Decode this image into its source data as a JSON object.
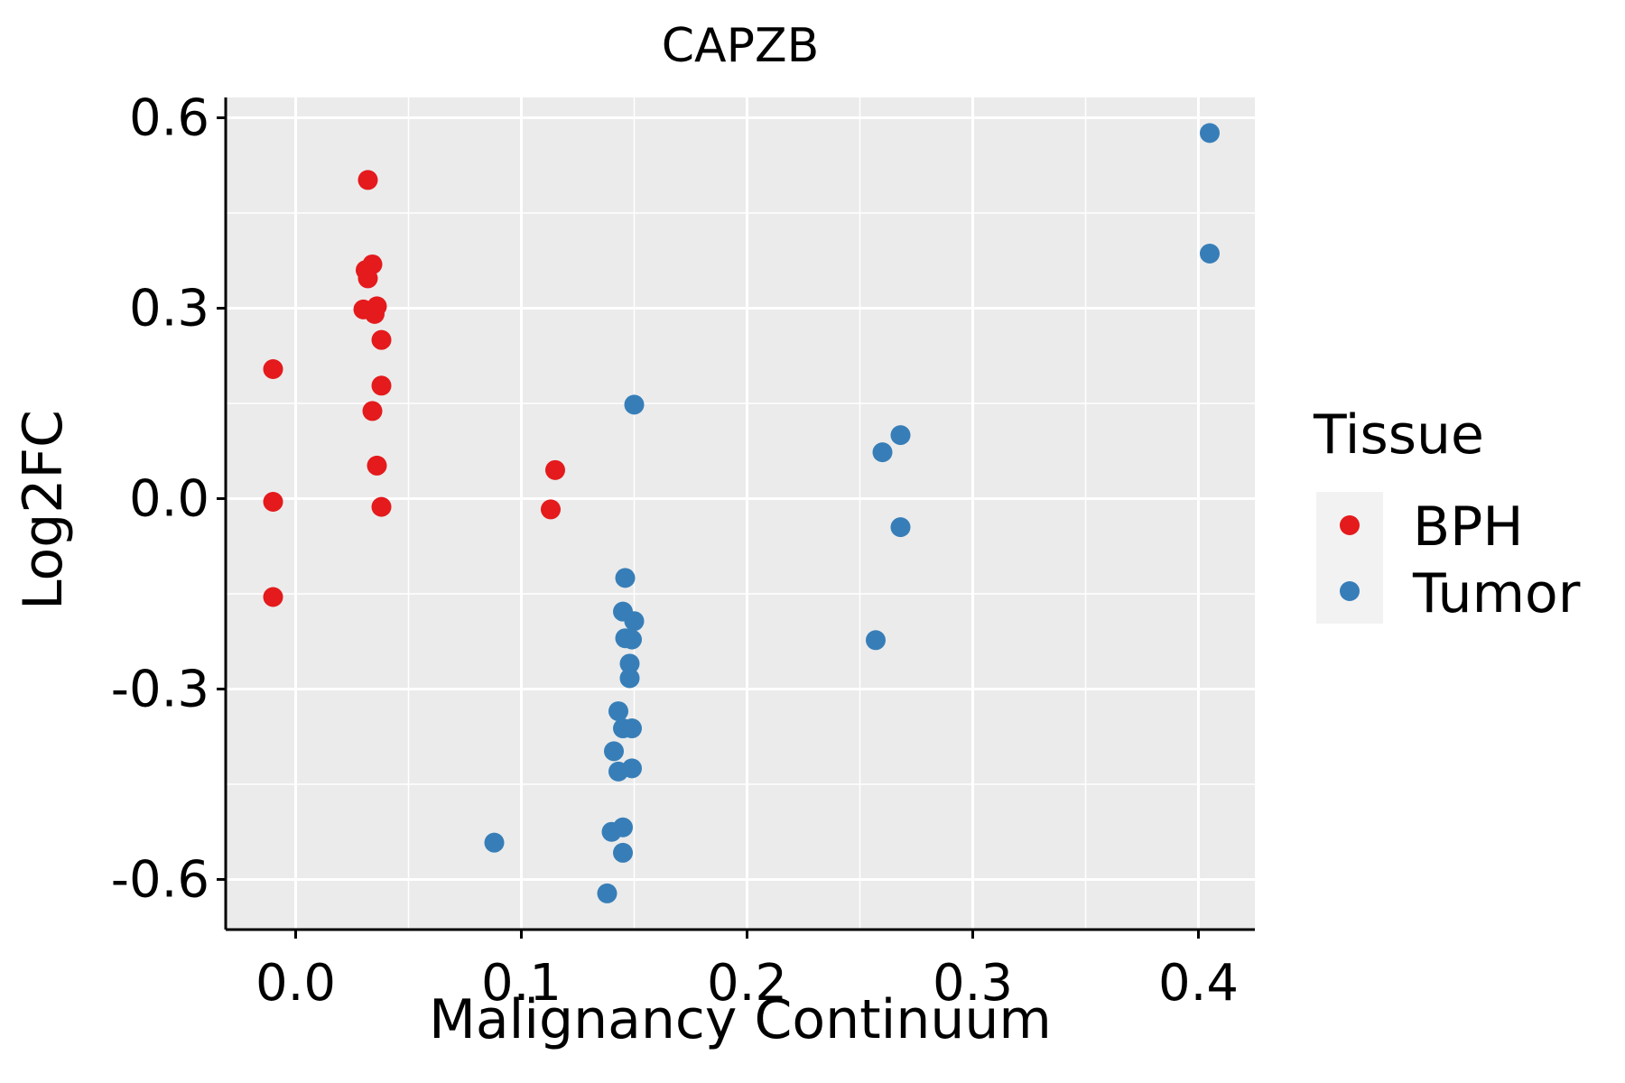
{
  "chart_data": {
    "type": "scatter",
    "title": "CAPZB",
    "xlabel": "Malignancy Continuum",
    "ylabel": "Log2FC",
    "xlim": [
      -0.031,
      0.425
    ],
    "ylim": [
      -0.679,
      0.632
    ],
    "x_ticks": [
      0.0,
      0.1,
      0.2,
      0.3,
      0.4
    ],
    "x_tick_labels": [
      "0.0",
      "0.1",
      "0.2",
      "0.3",
      "0.4"
    ],
    "y_ticks": [
      0.6,
      0.3,
      0.0,
      -0.3,
      -0.6
    ],
    "y_tick_labels": [
      "0.6",
      "0.3",
      "0.0",
      "-0.3",
      "-0.6"
    ],
    "grid": true,
    "legend": {
      "title": "Tissue",
      "position": "right",
      "entries": [
        {
          "label": "BPH",
          "color": "#E41A1C"
        },
        {
          "label": "Tumor",
          "color": "#377EB8"
        }
      ]
    },
    "series": [
      {
        "name": "BPH",
        "color": "#E41A1C",
        "points": [
          [
            0.032,
            0.502
          ],
          [
            0.034,
            0.369
          ],
          [
            0.031,
            0.36
          ],
          [
            0.032,
            0.347
          ],
          [
            0.03,
            0.298
          ],
          [
            0.036,
            0.303
          ],
          [
            0.035,
            0.291
          ],
          [
            0.038,
            0.25
          ],
          [
            -0.01,
            0.204
          ],
          [
            0.038,
            0.178
          ],
          [
            0.034,
            0.138
          ],
          [
            0.036,
            0.052
          ],
          [
            0.038,
            -0.013
          ],
          [
            -0.01,
            -0.005
          ],
          [
            -0.01,
            -0.155
          ],
          [
            0.115,
            0.045
          ],
          [
            0.113,
            -0.017
          ]
        ]
      },
      {
        "name": "Tumor",
        "color": "#377EB8",
        "points": [
          [
            0.405,
            0.576
          ],
          [
            0.405,
            0.386
          ],
          [
            0.15,
            0.148
          ],
          [
            0.268,
            0.1
          ],
          [
            0.26,
            0.073
          ],
          [
            0.268,
            -0.045
          ],
          [
            0.257,
            -0.223
          ],
          [
            0.146,
            -0.125
          ],
          [
            0.145,
            -0.178
          ],
          [
            0.15,
            -0.193
          ],
          [
            0.146,
            -0.22
          ],
          [
            0.149,
            -0.222
          ],
          [
            0.148,
            -0.26
          ],
          [
            0.148,
            -0.283
          ],
          [
            0.143,
            -0.335
          ],
          [
            0.145,
            -0.362
          ],
          [
            0.149,
            -0.362
          ],
          [
            0.141,
            -0.398
          ],
          [
            0.149,
            -0.425
          ],
          [
            0.143,
            -0.43
          ],
          [
            0.145,
            -0.518
          ],
          [
            0.14,
            -0.525
          ],
          [
            0.145,
            -0.558
          ],
          [
            0.088,
            -0.542
          ],
          [
            0.138,
            -0.622
          ]
        ]
      }
    ]
  }
}
